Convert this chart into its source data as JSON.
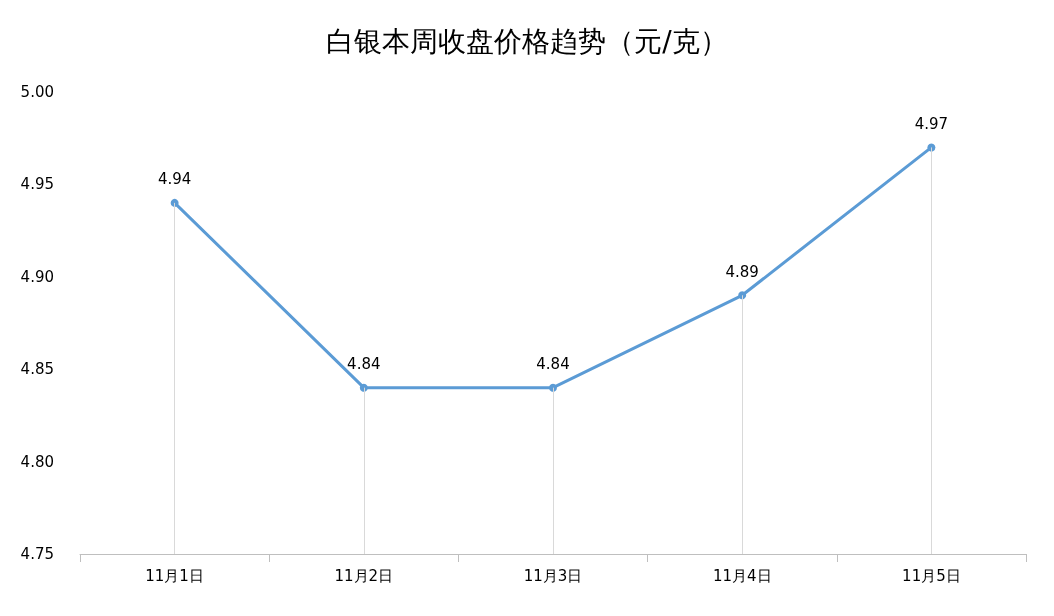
{
  "chart_data": {
    "type": "line",
    "title": "白银本周收盘价格趋势（元/克）",
    "categories": [
      "11月1日",
      "11月2日",
      "11月3日",
      "11月4日",
      "11月5日"
    ],
    "series": [
      {
        "color": "#5b9bd5",
        "values": [
          4.94,
          4.84,
          4.84,
          4.89,
          4.97
        ]
      }
    ],
    "ylim": [
      4.75,
      5.0
    ],
    "yticks": [
      {
        "value": 4.75,
        "label": "4.75"
      },
      {
        "value": 4.8,
        "label": "4.80"
      },
      {
        "value": 4.85,
        "label": "4.85"
      },
      {
        "value": 4.9,
        "label": "4.90"
      },
      {
        "value": 4.95,
        "label": "4.95"
      },
      {
        "value": 5.0,
        "label": "5.00"
      }
    ],
    "grid": "x",
    "marker": "circle",
    "line_style": "solid",
    "data_labels": true
  }
}
